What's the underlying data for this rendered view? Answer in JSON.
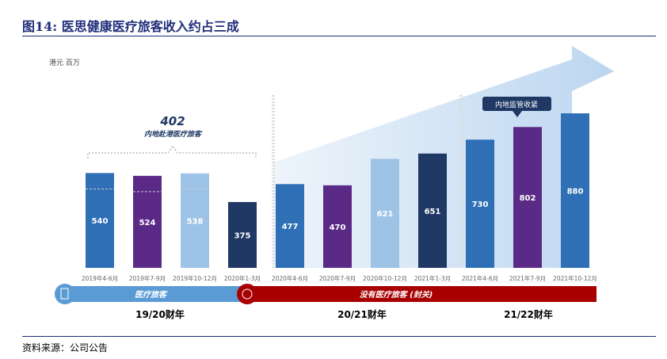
{
  "title": "图14:  医思健康医疗旅客收入约占三成",
  "source": "资料来源：公司公告",
  "chart_data": {
    "type": "bar",
    "unit_label": "港元 百万",
    "categories": [
      "2019年4-6月",
      "2019年7-9月",
      "2019年10-12月",
      "2020年1-3月",
      "2020年4-6月",
      "2020年7-9月",
      "2020年10-12月",
      "2021年1-3月",
      "2021年4-6月",
      "2021年7-9月",
      "2021年10-12月"
    ],
    "values": [
      540,
      524,
      538,
      375,
      477,
      470,
      621,
      651,
      730,
      802,
      880
    ],
    "colors": [
      "#2e6fb5",
      "#5b2a86",
      "#9dc3e6",
      "#1f3864",
      "#2e6fb5",
      "#5b2a86",
      "#9dc3e6",
      "#1f3864",
      "#2e6fb5",
      "#5b2a86",
      "#2e6fb5"
    ],
    "ylim": [
      0,
      900
    ],
    "annotation_value": "402",
    "annotation_label": "内地赴港医疗旅客",
    "callout": "内地监管收紧",
    "band_left": "医疗旅客",
    "band_right": "没有医疗旅客 (封关)",
    "fiscal_years": [
      "19/20财年",
      "20/21财年",
      "21/22财年"
    ]
  }
}
